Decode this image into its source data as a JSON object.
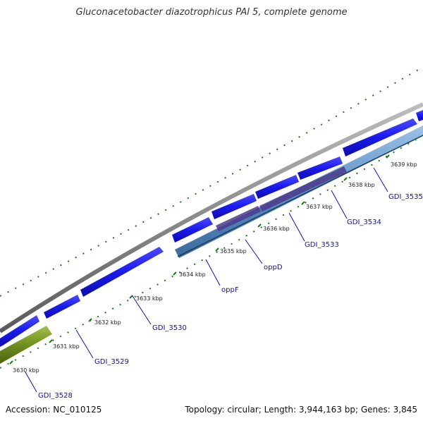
{
  "title": "Gluconacetobacter diazotrophicus PAl 5, complete genome",
  "footer": {
    "accession": "Accession: NC_010125",
    "summary": "Topology: circular; Length: 3,944,163 bp; Genes: 3,845"
  },
  "tick_labels": [
    "3630 kbp",
    "3631 kbp",
    "3632 kbp",
    "3633 kbp",
    "3634 kbp",
    "3635 kbp",
    "3636 kbp",
    "3637 kbp",
    "3638 kbp",
    "3639 kbp"
  ],
  "gene_labels": [
    "GDI_3528",
    "GDI_3529",
    "GDI_3530",
    "oppF",
    "oppD",
    "GDI_3533",
    "GDI_3534",
    "GDI_3535"
  ],
  "colors": {
    "backbone": "#8a8a8a",
    "forward_cds": "#1a1aee",
    "reverse_cds": "#5b8fc8",
    "reverse_cds_dark": "#4b3a8a",
    "rna_like": "#6f8f1f",
    "tick": "#1a7a1a",
    "label": "#1010aa"
  }
}
